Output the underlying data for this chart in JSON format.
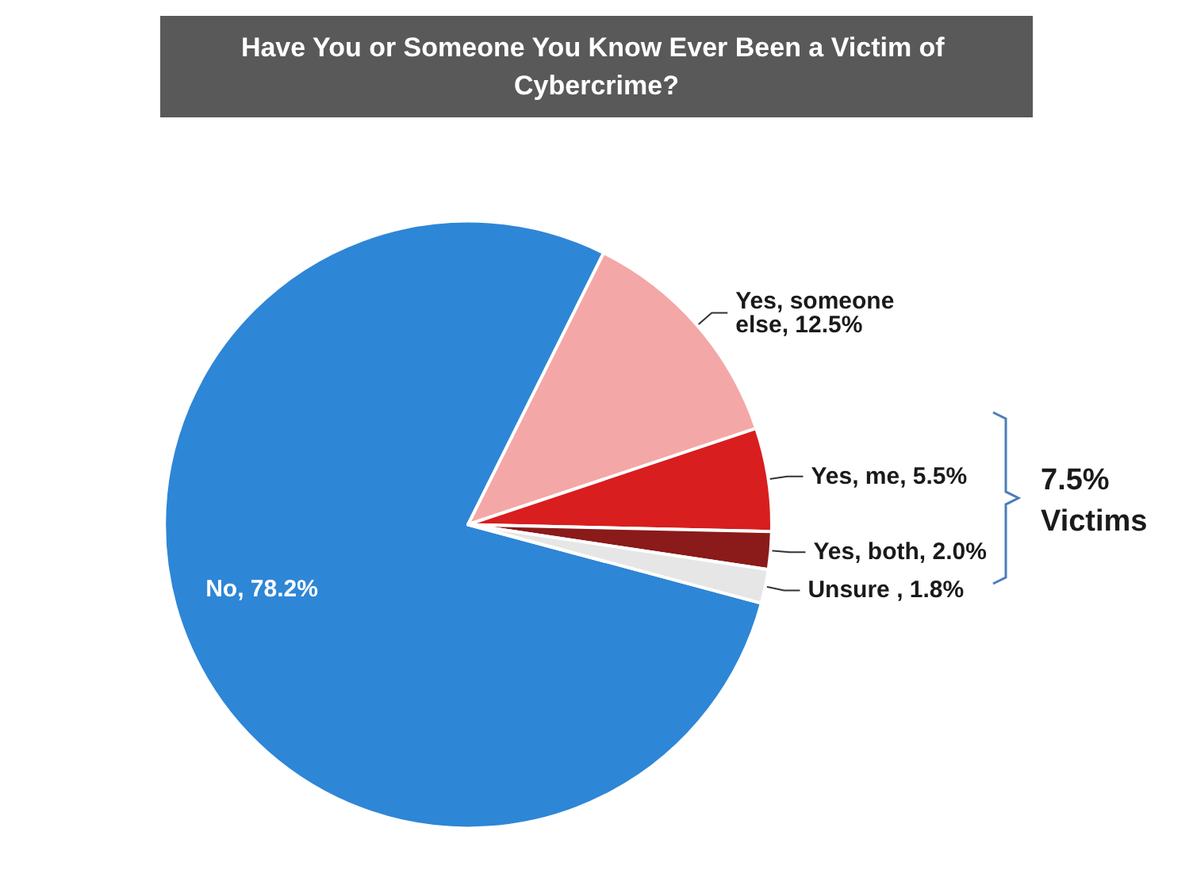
{
  "chart_data": {
    "type": "pie",
    "title": "Have You or Someone You Know Ever Been a Victim of Cybercrime?",
    "categories": [
      "No",
      "Yes, someone else",
      "Yes, me",
      "Yes, both",
      "Unsure "
    ],
    "values": [
      78.2,
      12.5,
      5.5,
      2.0,
      1.8
    ],
    "colors": [
      "#2e86d6",
      "#f4a7a7",
      "#d81e1e",
      "#8b1a1a",
      "#e6e6e6"
    ],
    "value_labels": [
      "78.2%",
      "12.5%",
      "5.5%",
      "2.0%",
      "1.8%"
    ],
    "legend": false,
    "annotations": [
      "7.5% Victims"
    ]
  }
}
